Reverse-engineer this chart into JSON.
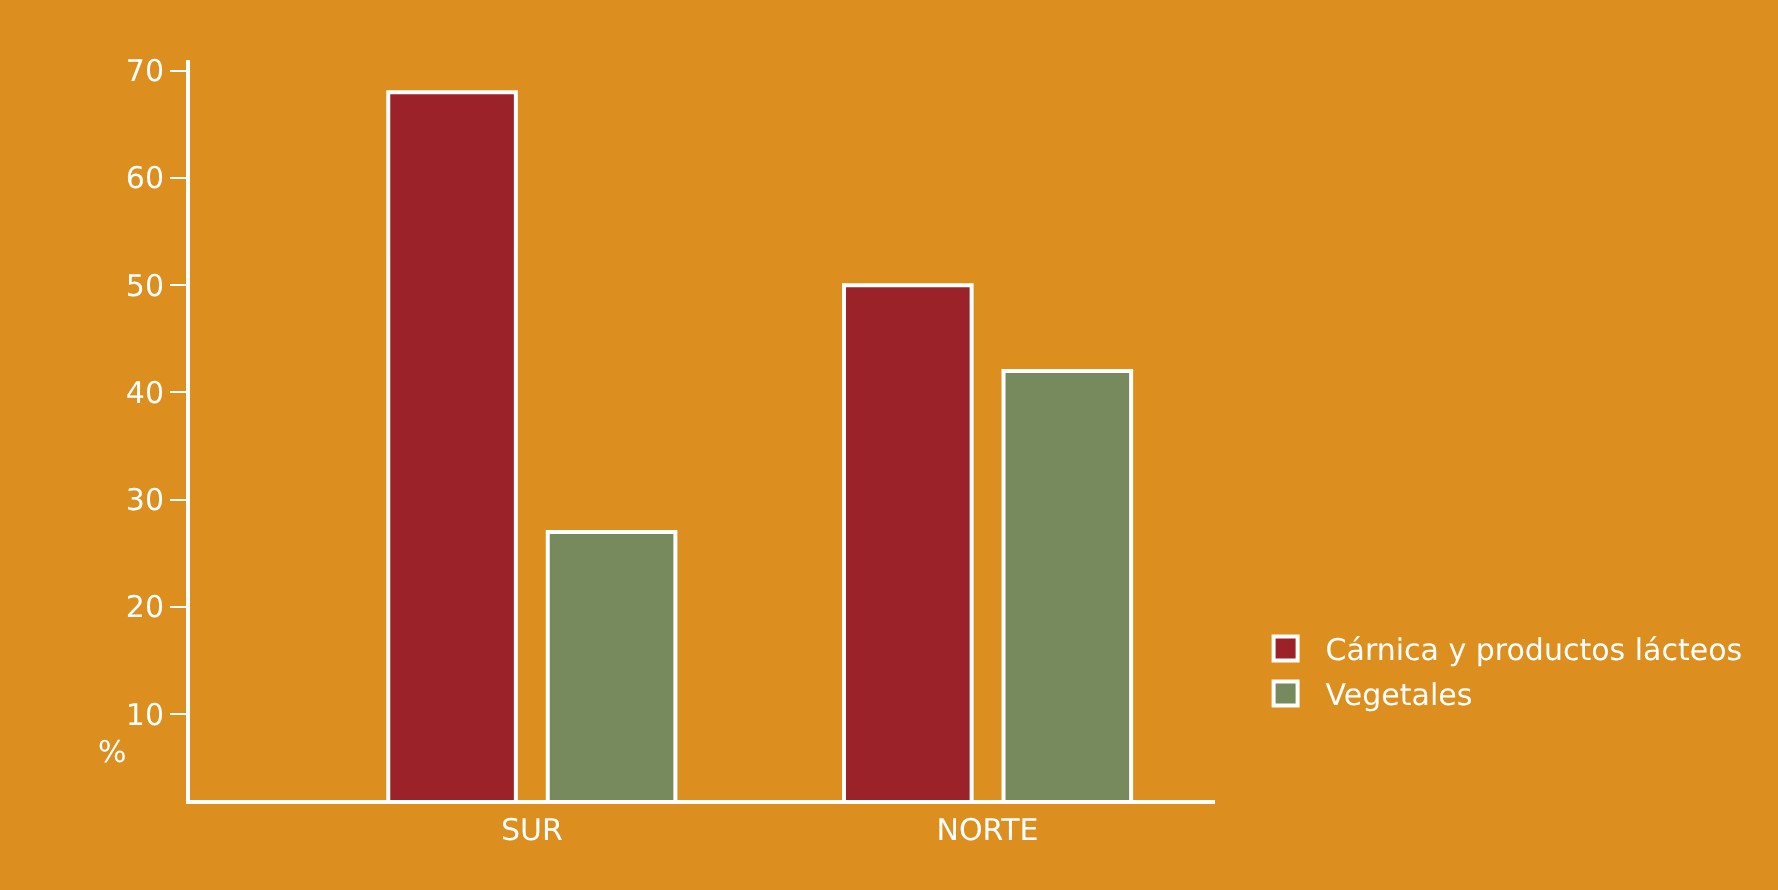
{
  "chart_data": {
    "type": "bar",
    "ylabel": "%",
    "categories": [
      "SUR",
      "NORTE"
    ],
    "series": [
      {
        "name": "Cárnica y productos lácteos",
        "color": "#9b2229",
        "values": [
          68,
          50
        ]
      },
      {
        "name": "Vegetales",
        "color": "#778a5e",
        "values": [
          27,
          42
        ]
      }
    ],
    "ylim": [
      2,
      71
    ],
    "yticks": [
      10,
      20,
      30,
      40,
      50,
      60,
      70
    ],
    "grid": false,
    "legend": "right"
  }
}
